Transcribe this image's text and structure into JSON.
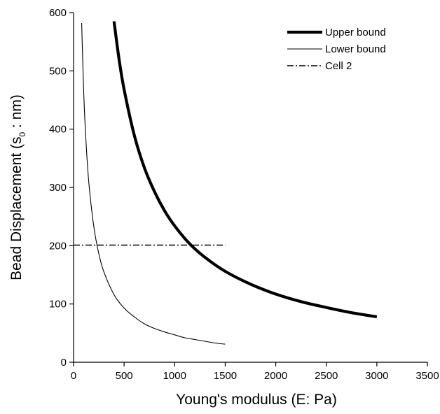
{
  "chart_data": {
    "type": "line",
    "title": "",
    "xlabel": "Young's modulus (E: Pa)",
    "ylabel_main": "Bead Displacement (s",
    "ylabel_sub": "0",
    "ylabel_end": " : nm)",
    "xlim": [
      0,
      3500
    ],
    "ylim": [
      0,
      600
    ],
    "xticks": [
      0,
      500,
      1000,
      1500,
      2000,
      2500,
      3000,
      3500
    ],
    "yticks": [
      0,
      100,
      200,
      300,
      400,
      500,
      600
    ],
    "xtick_labels": [
      "0",
      "500",
      "1000",
      "1500",
      "2000",
      "2500",
      "3000",
      "3500"
    ],
    "ytick_labels": [
      "0",
      "100",
      "200",
      "300",
      "400",
      "500",
      "600"
    ],
    "grid": false,
    "legend_position": "top-right",
    "series": [
      {
        "name": "Upper bound",
        "style": "solid-thick",
        "color": "#000000",
        "x": [
          400,
          450,
          500,
          600,
          700,
          800,
          900,
          1000,
          1150,
          1300,
          1500,
          1750,
          2000,
          2250,
          2500,
          2750,
          3000
        ],
        "y": [
          585,
          520,
          468,
          390,
          334,
          293,
          260,
          234,
          203,
          180,
          156,
          134,
          117,
          104,
          94,
          85,
          78
        ]
      },
      {
        "name": "Lower bound",
        "style": "solid-thin",
        "color": "#000000",
        "x": [
          80,
          100,
          120,
          150,
          200,
          250,
          300,
          400,
          500,
          600,
          700,
          800,
          900,
          1000,
          1100,
          1200,
          1300,
          1400,
          1500
        ],
        "y": [
          582,
          465,
          388,
          310,
          233,
          186,
          155,
          116,
          93,
          78,
          66,
          58,
          52,
          47,
          42,
          39,
          36,
          33,
          31
        ]
      },
      {
        "name": "Cell 2",
        "style": "dash-dot",
        "color": "#000000",
        "x": [
          0,
          1500
        ],
        "y": [
          201,
          201
        ]
      }
    ]
  }
}
